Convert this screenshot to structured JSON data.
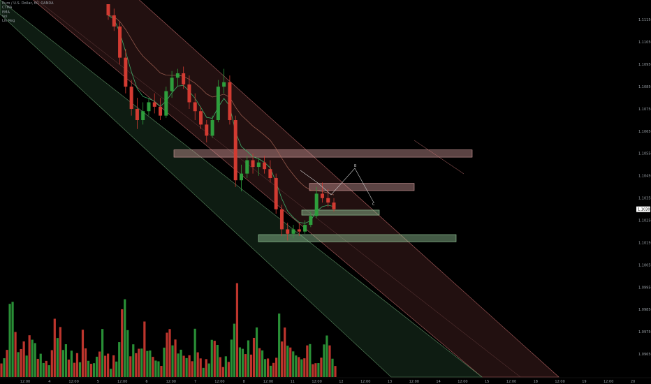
{
  "legend": {
    "symbol": "Euro / U.S. Dollar, 60, OANDA",
    "indicators": [
      "CTMA",
      "EMA",
      "Vol",
      "Lin Reg"
    ]
  },
  "colors": {
    "background": "#000000",
    "up": "#2e9e3c",
    "down": "#d23b32",
    "upper_channel": "#7a3a3a",
    "lower_channel": "#2f5e3a",
    "zone": "#d8a0a0",
    "zone_green": "#9fd6a4",
    "ema": "#3fae6a",
    "ctma": "#b06a5a"
  },
  "chart_data": {
    "type": "candlestick",
    "title": "Euro / U.S. Dollar, 60, OANDA",
    "y_ticks": [
      "1.11150",
      "1.11050",
      "1.10950",
      "1.10850",
      "1.10750",
      "1.10650",
      "1.10550",
      "1.10450",
      "1.10350",
      "1.10250",
      "1.10150",
      "1.10050",
      "1.09950",
      "1.09850",
      "1.09750",
      "1.09650"
    ],
    "y_tick_values": [
      1.1115,
      1.1105,
      1.1095,
      1.1085,
      1.1075,
      1.1065,
      1.1055,
      1.1045,
      1.1035,
      1.1025,
      1.1015,
      1.1005,
      1.0995,
      1.0985,
      1.0975,
      1.0965
    ],
    "ylim": [
      1.0961,
      1.1122
    ],
    "current_price": "1.10300",
    "current_price_value": 1.103,
    "x_ticks": [
      "12:00",
      "4",
      "12:00",
      "5",
      "12:00",
      "6",
      "12:00",
      "7",
      "12:00",
      "8",
      "12:00",
      "11",
      "12:00",
      "12",
      "12:00",
      "13",
      "12:00",
      "14",
      "12:00",
      "15",
      "12:00",
      "18",
      "12:00",
      "19",
      "12:00",
      "20"
    ],
    "session_slots": 124,
    "session_count": 61,
    "candles": [
      [
        1.1122,
        1.1122,
        1.1115,
        1.1117
      ],
      [
        1.1117,
        1.112,
        1.111,
        1.1112
      ],
      [
        1.1112,
        1.1114,
        1.1095,
        1.1098
      ],
      [
        1.1098,
        1.1102,
        1.1082,
        1.1085
      ],
      [
        1.1085,
        1.1088,
        1.1072,
        1.1075
      ],
      [
        1.1075,
        1.108,
        1.1066,
        1.107
      ],
      [
        1.107,
        1.1078,
        1.1068,
        1.1074
      ],
      [
        1.1074,
        1.108,
        1.1072,
        1.1078
      ],
      [
        1.1078,
        1.1082,
        1.1073,
        1.1076
      ],
      [
        1.1076,
        1.108,
        1.107,
        1.1072
      ],
      [
        1.1072,
        1.1085,
        1.1071,
        1.1083
      ],
      [
        1.1083,
        1.1092,
        1.108,
        1.1089
      ],
      [
        1.1089,
        1.1093,
        1.1085,
        1.1091
      ],
      [
        1.1091,
        1.1094,
        1.1084,
        1.1086
      ],
      [
        1.1086,
        1.109,
        1.1075,
        1.1078
      ],
      [
        1.1078,
        1.1082,
        1.107,
        1.1074
      ],
      [
        1.1074,
        1.1076,
        1.1066,
        1.1068
      ],
      [
        1.1068,
        1.107,
        1.106,
        1.1063
      ],
      [
        1.1063,
        1.1072,
        1.1062,
        1.107
      ],
      [
        1.107,
        1.1088,
        1.1069,
        1.1085
      ],
      [
        1.1085,
        1.1093,
        1.1082,
        1.1087
      ],
      [
        1.1087,
        1.109,
        1.1068,
        1.107
      ],
      [
        1.107,
        1.1072,
        1.104,
        1.1043
      ],
      [
        1.1043,
        1.105,
        1.1038,
        1.1046
      ],
      [
        1.1046,
        1.1054,
        1.1044,
        1.1052
      ],
      [
        1.1052,
        1.1055,
        1.1046,
        1.1049
      ],
      [
        1.1049,
        1.1053,
        1.1045,
        1.1051
      ],
      [
        1.1051,
        1.1054,
        1.1046,
        1.1048
      ],
      [
        1.1048,
        1.1052,
        1.1042,
        1.1044
      ],
      [
        1.1044,
        1.1046,
        1.1028,
        1.103
      ],
      [
        1.103,
        1.1032,
        1.1018,
        1.1021
      ],
      [
        1.1021,
        1.1024,
        1.1016,
        1.1019
      ],
      [
        1.1019,
        1.1023,
        1.1017,
        1.1021
      ],
      [
        1.1021,
        1.1024,
        1.1018,
        1.102
      ],
      [
        1.102,
        1.1025,
        1.1019,
        1.1023
      ],
      [
        1.1023,
        1.1029,
        1.1022,
        1.1027
      ],
      [
        1.1027,
        1.104,
        1.1026,
        1.1037
      ],
      [
        1.1037,
        1.1042,
        1.1033,
        1.1035
      ],
      [
        1.1035,
        1.1039,
        1.1031,
        1.1033
      ],
      [
        1.1033,
        1.1035,
        1.1029,
        1.103
      ]
    ],
    "volume_relative": [
      0.24,
      0.2,
      0.41,
      0.8,
      1.0,
      0.52,
      0.3,
      0.35,
      0.4,
      0.3,
      0.45,
      0.6,
      0.36,
      0.3,
      0.25,
      0.2,
      0.18,
      0.15,
      0.32,
      0.68,
      0.51,
      0.55,
      0.4,
      0.35,
      0.3,
      0.28,
      0.22,
      0.26,
      0.2,
      0.54,
      0.35,
      0.2,
      0.15,
      0.19,
      0.22,
      0.4,
      0.51,
      0.36,
      0.25,
      0.12
    ],
    "drawings": {
      "channel_upper": {
        "p1": [
          "start",
          1.1155
        ],
        "p2": [
          "day14",
          1.0955
        ],
        "width": 0.003
      },
      "channel_lower": {
        "p1": [
          "start",
          1.1125
        ],
        "p2": [
          "day14",
          1.0925
        ],
        "width": 0.003
      },
      "resistance_zone_1": [
        1.1054,
        1.1056
      ],
      "resistance_zone_2": [
        1.1039,
        1.1041
      ],
      "support_zone_1": [
        1.1016,
        1.1018
      ],
      "support_zone_2": [
        1.1028,
        1.1029
      ],
      "pattern_labels": [
        "B",
        "C"
      ]
    }
  }
}
